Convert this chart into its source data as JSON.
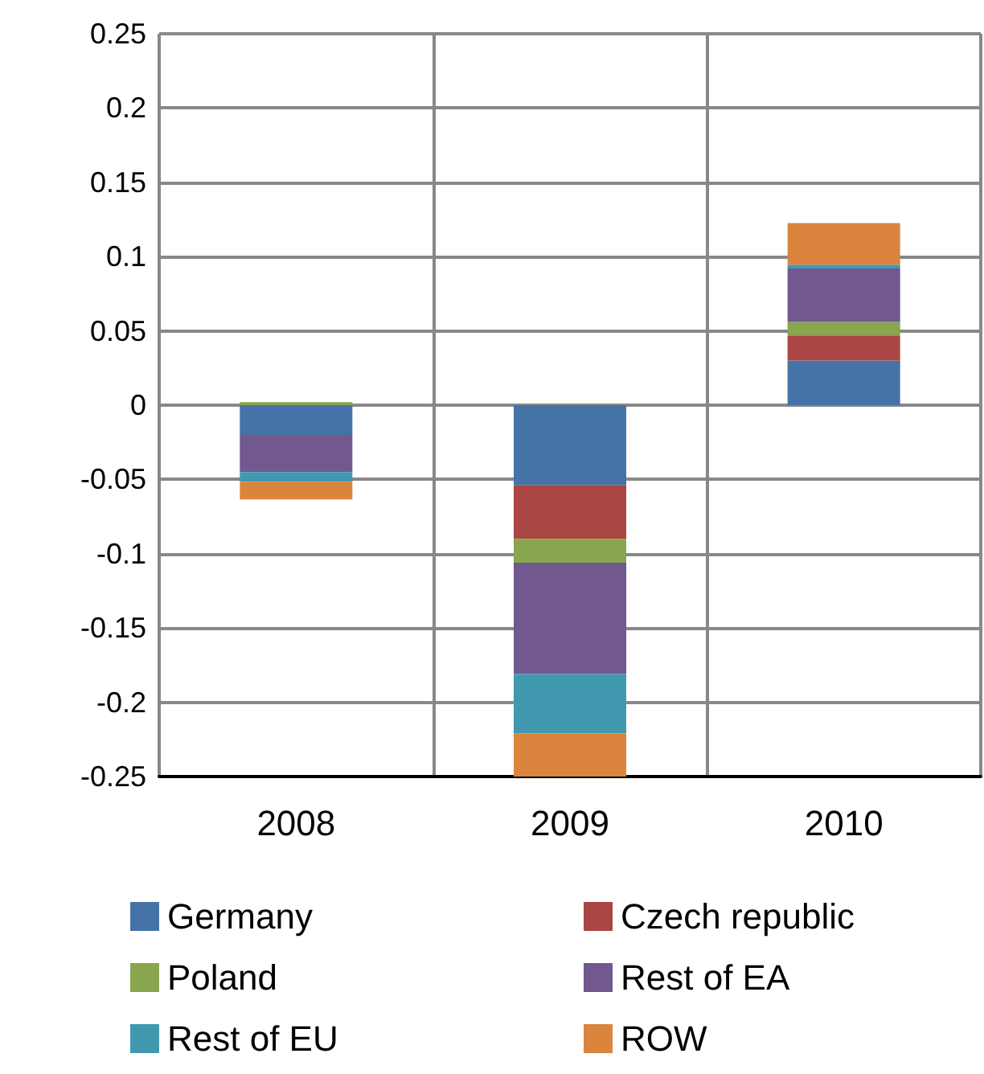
{
  "chart_data": {
    "type": "bar",
    "stacked": true,
    "categories": [
      "2008",
      "2009",
      "2010"
    ],
    "series": [
      {
        "name": "Germany",
        "color": "#4573a7",
        "values": [
          -0.02,
          -0.054,
          0.03
        ]
      },
      {
        "name": "Czech republic",
        "color": "#aa4643",
        "values": [
          0,
          -0.036,
          0.017
        ]
      },
      {
        "name": "Poland",
        "color": "#89a54e",
        "values": [
          0.002,
          -0.016,
          0.009
        ]
      },
      {
        "name": "Rest of EA",
        "color": "#71588f",
        "values": [
          -0.025,
          -0.075,
          0.036
        ]
      },
      {
        "name": "Rest of EU",
        "color": "#4198af",
        "values": [
          -0.0065,
          -0.04,
          0.0026
        ]
      },
      {
        "name": "ROW",
        "color": "#db843d",
        "values": [
          -0.012,
          -0.029,
          0.028
        ]
      }
    ],
    "ylim": [
      -0.25,
      0.25
    ],
    "yticks": [
      -0.25,
      -0.2,
      -0.15,
      -0.1,
      -0.05,
      0,
      0.05,
      0.1,
      0.15,
      0.2,
      0.25
    ],
    "grid": true,
    "legend": "bottom"
  }
}
